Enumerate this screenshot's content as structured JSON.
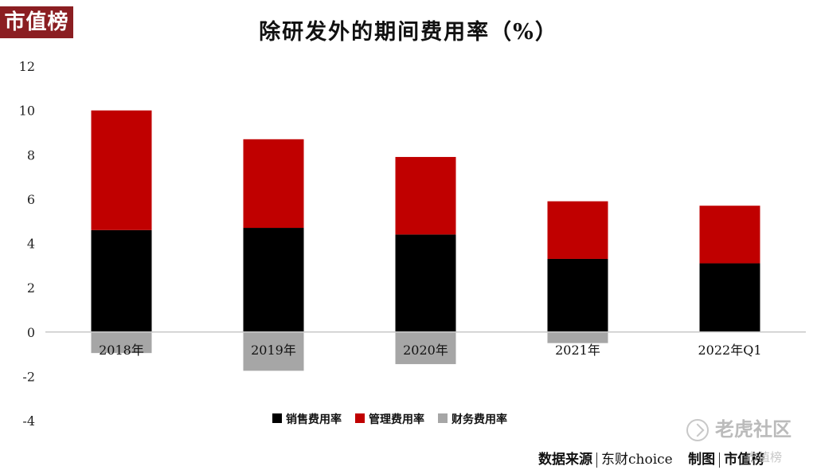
{
  "logo_text": "市值榜",
  "colors": {
    "logo_bg": "#8b1e22",
    "sales": "#000000",
    "admin": "#c00000",
    "finance": "#a6a6a6"
  },
  "source": {
    "prefix": "数据来源",
    "provider": "东财choice",
    "made_by": "制图",
    "maker": "市值榜"
  },
  "watermark": {
    "text": "老虎社区",
    "small": "市值榜"
  },
  "chart_data": {
    "type": "bar",
    "stacked": true,
    "title": "除研发外的期间费用率（%）",
    "xlabel": "",
    "ylabel": "",
    "categories": [
      "2018年",
      "2019年",
      "2020年",
      "2021年",
      "2022年Q1"
    ],
    "series": [
      {
        "name": "销售费用率",
        "color": "#000000",
        "values": [
          4.6,
          4.7,
          4.4,
          3.3,
          3.1
        ]
      },
      {
        "name": "管理费用率",
        "color": "#c00000",
        "values": [
          5.4,
          4.0,
          3.5,
          2.6,
          2.6
        ]
      },
      {
        "name": "财务费用率",
        "color": "#a6a6a6",
        "values": [
          -0.95,
          -1.75,
          -1.45,
          -0.5,
          0.0
        ]
      }
    ],
    "ylim": [
      -4,
      12
    ],
    "yticks": [
      -4,
      -2,
      0,
      2,
      4,
      6,
      8,
      10,
      12
    ],
    "grid": false,
    "legend_position": "bottom"
  }
}
